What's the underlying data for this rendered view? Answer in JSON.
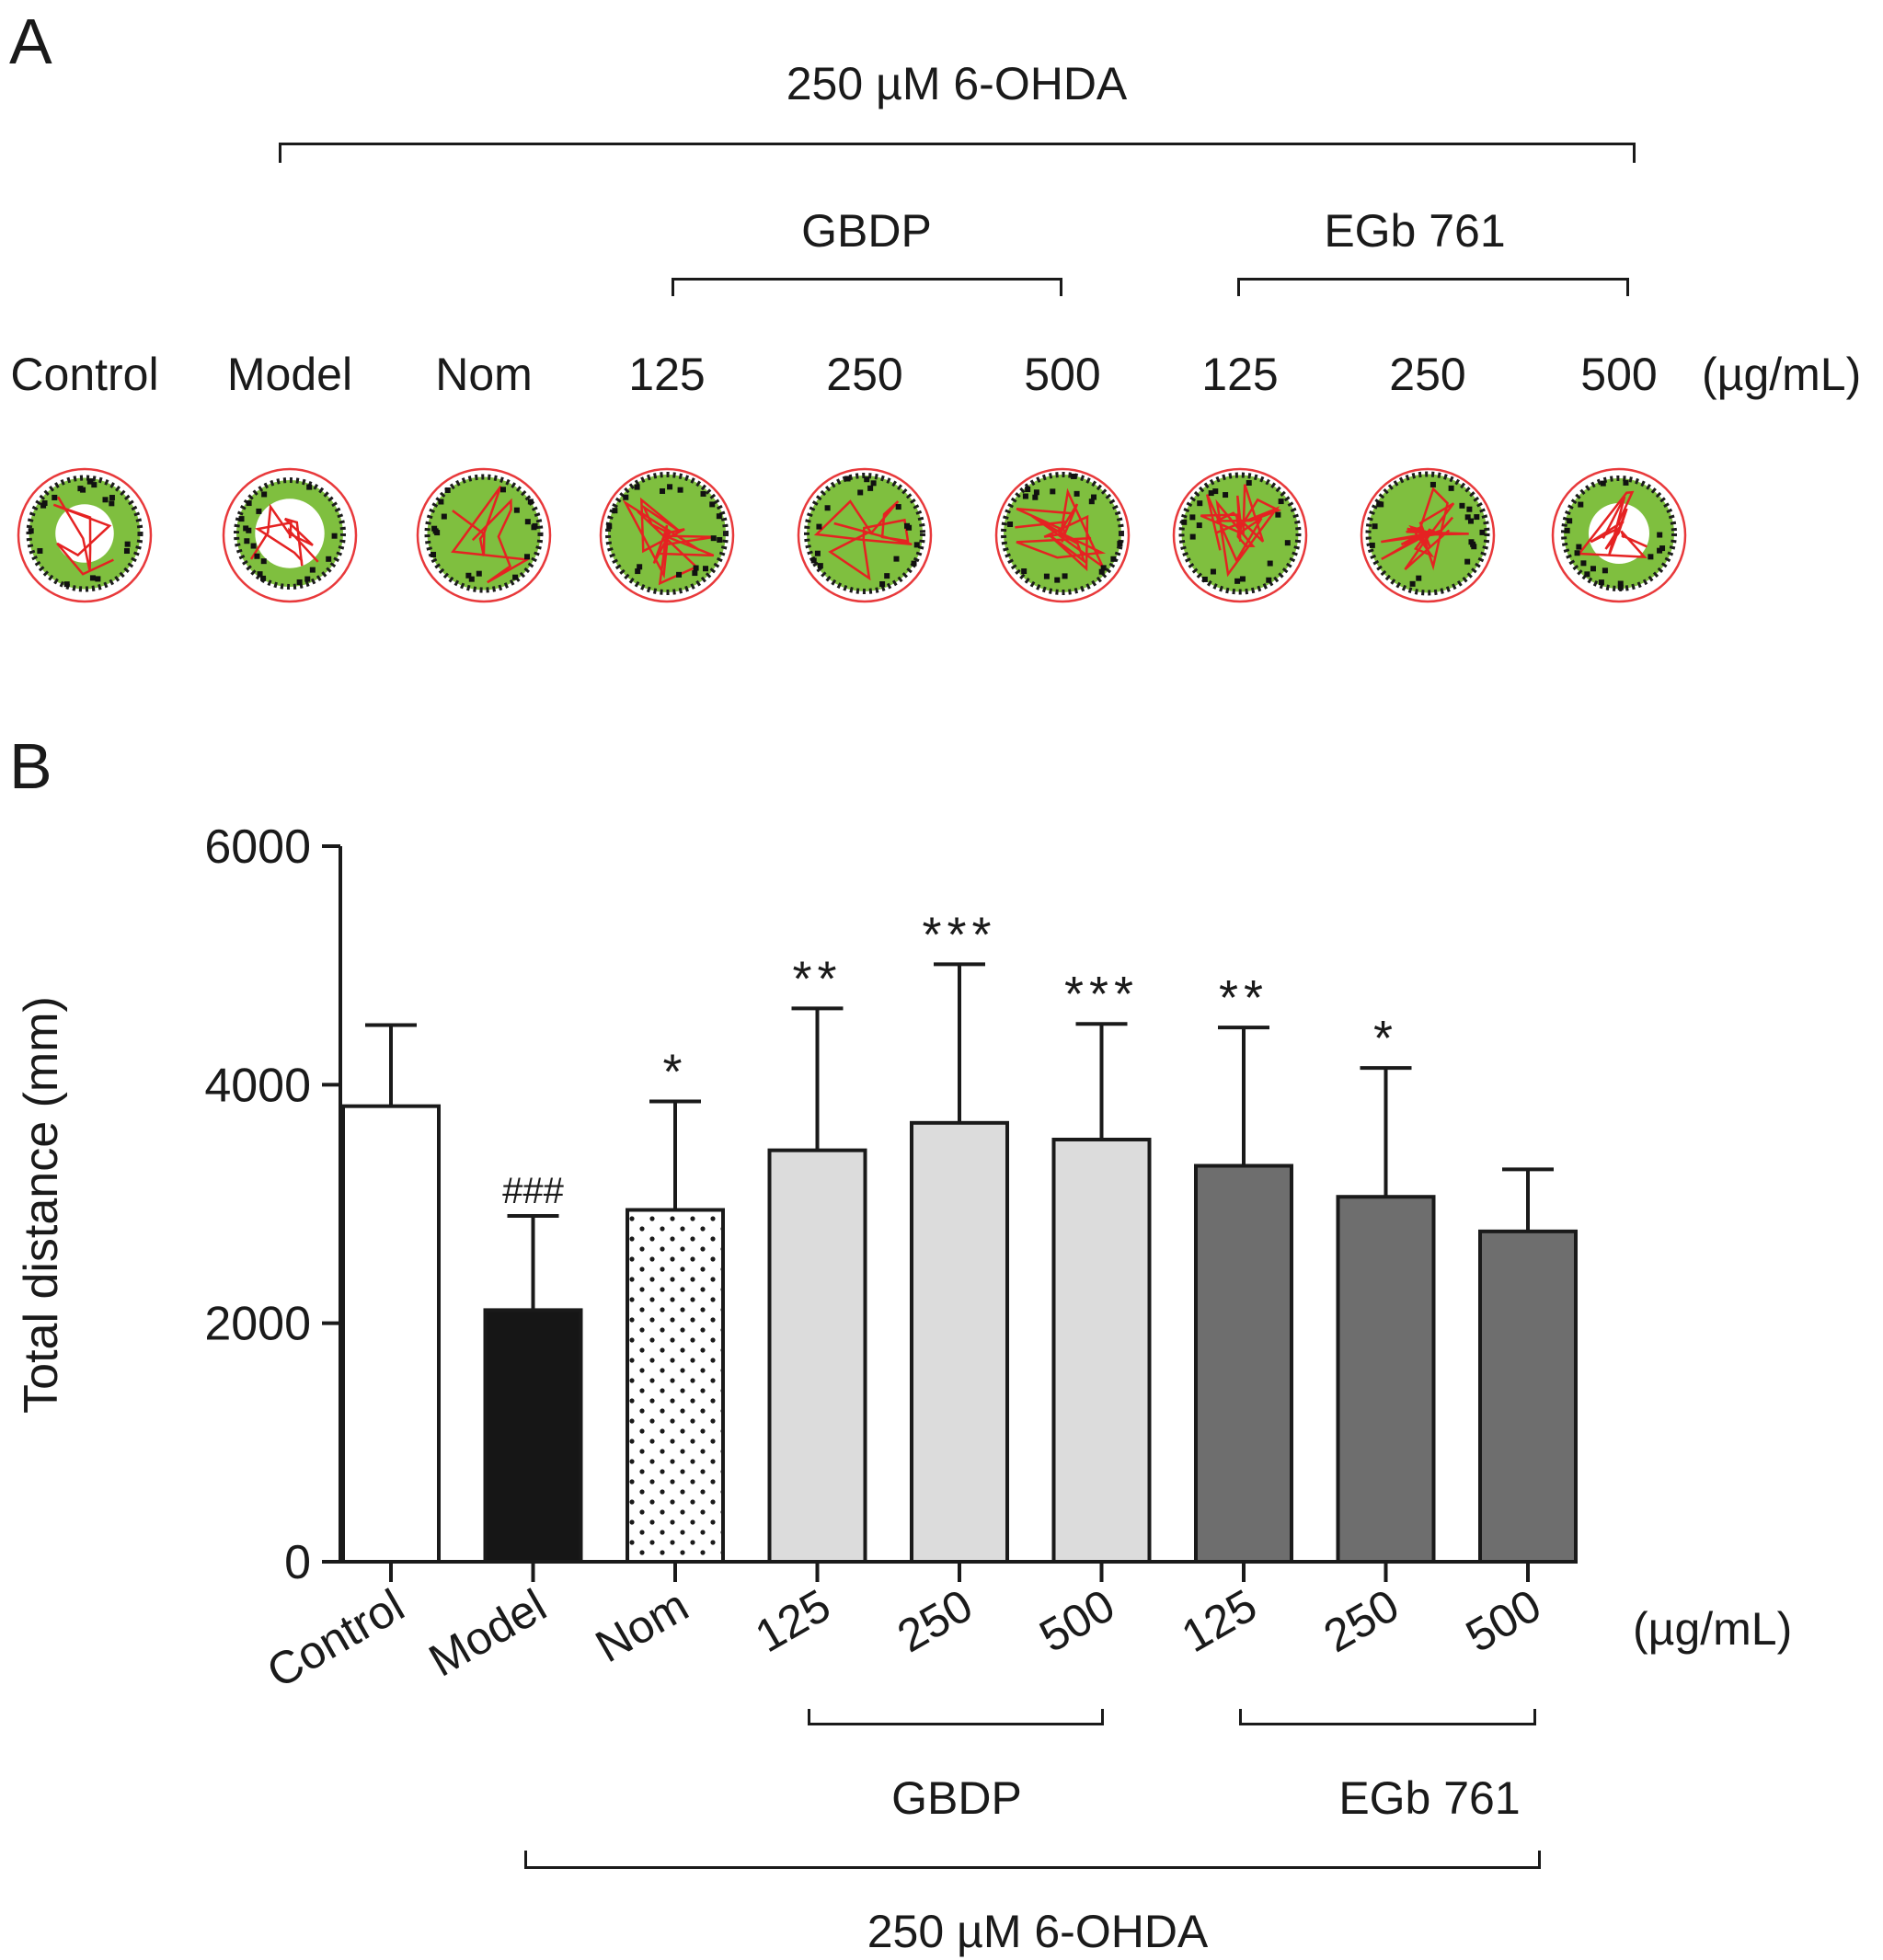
{
  "panel_a": {
    "letter": "A",
    "treatment_label": "250 µM 6-OHDA",
    "group1_label": "GBDP",
    "group2_label": "EGb 761",
    "unit": "(µg/mL)",
    "columns": [
      {
        "label": "Control",
        "density": 0.45,
        "red": 0.15
      },
      {
        "label": "Model",
        "density": 0.2,
        "red": 0.3
      },
      {
        "label": "Nom",
        "density": 0.55,
        "red": 0.25
      },
      {
        "label": "125",
        "density": 0.8,
        "red": 0.55
      },
      {
        "label": "250",
        "density": 0.7,
        "red": 0.35
      },
      {
        "label": "500",
        "density": 0.8,
        "red": 0.6
      },
      {
        "label": "125",
        "density": 0.75,
        "red": 0.65
      },
      {
        "label": "250",
        "density": 0.85,
        "red": 0.8
      },
      {
        "label": "500",
        "density": 0.4,
        "red": 0.35
      }
    ]
  },
  "panel_b": {
    "letter": "B",
    "unit": "(µg/mL)",
    "group1_label": "GBDP",
    "group2_label": "EGb 761",
    "treatment_label": "250 µM 6-OHDA"
  },
  "chart_data": {
    "type": "bar",
    "ylabel": "Total distance (mm)",
    "xlabel": "",
    "ylim": [
      0,
      6000
    ],
    "yticks": [
      0,
      2000,
      4000,
      6000
    ],
    "categories": [
      "Control",
      "Model",
      "Nom",
      "125",
      "250",
      "500",
      "125",
      "250",
      "500"
    ],
    "values": [
      3820,
      2110,
      2950,
      3450,
      3680,
      3540,
      3320,
      3060,
      2770
    ],
    "error_upper": [
      4500,
      2900,
      3860,
      4640,
      5010,
      4510,
      4480,
      4140,
      3290
    ],
    "annotations": [
      "",
      "###",
      "*",
      "**",
      "***",
      "***",
      "**",
      "*",
      ""
    ],
    "fills": [
      "#ffffff",
      "#161616",
      "dots",
      "#dcdcdc",
      "#dcdcdc",
      "#dcdcdc",
      "#6e6e6e",
      "#6e6e6e",
      "#6e6e6e"
    ],
    "grid": false
  }
}
